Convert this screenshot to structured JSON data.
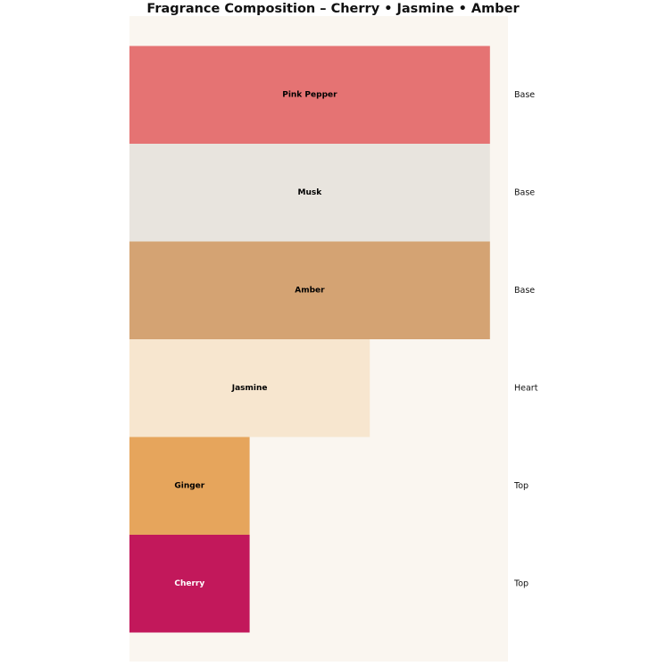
{
  "chart_data": {
    "type": "bar",
    "orientation": "horizontal",
    "title": "Fragrance Composition – Cherry • Jasmine • Amber",
    "background_color": "#faf6f0",
    "bars": [
      {
        "note": "Pink Pepper",
        "value": 3,
        "tier": "Base",
        "color": "#e57373",
        "label_color": "#000000"
      },
      {
        "note": "Musk",
        "value": 3,
        "tier": "Base",
        "color": "#e8e4de",
        "label_color": "#000000"
      },
      {
        "note": "Amber",
        "value": 3,
        "tier": "Base",
        "color": "#d4a373",
        "label_color": "#000000"
      },
      {
        "note": "Jasmine",
        "value": 2,
        "tier": "Heart",
        "color": "#f7e6cf",
        "label_color": "#000000"
      },
      {
        "note": "Ginger",
        "value": 1,
        "tier": "Top",
        "color": "#e6a55c",
        "label_color": "#000000"
      },
      {
        "note": "Cherry",
        "value": 1,
        "tier": "Top",
        "color": "#c2185b",
        "label_color": "#ffffff"
      }
    ],
    "xlim": [
      0,
      3.15
    ],
    "grid": false,
    "legend": "none"
  }
}
